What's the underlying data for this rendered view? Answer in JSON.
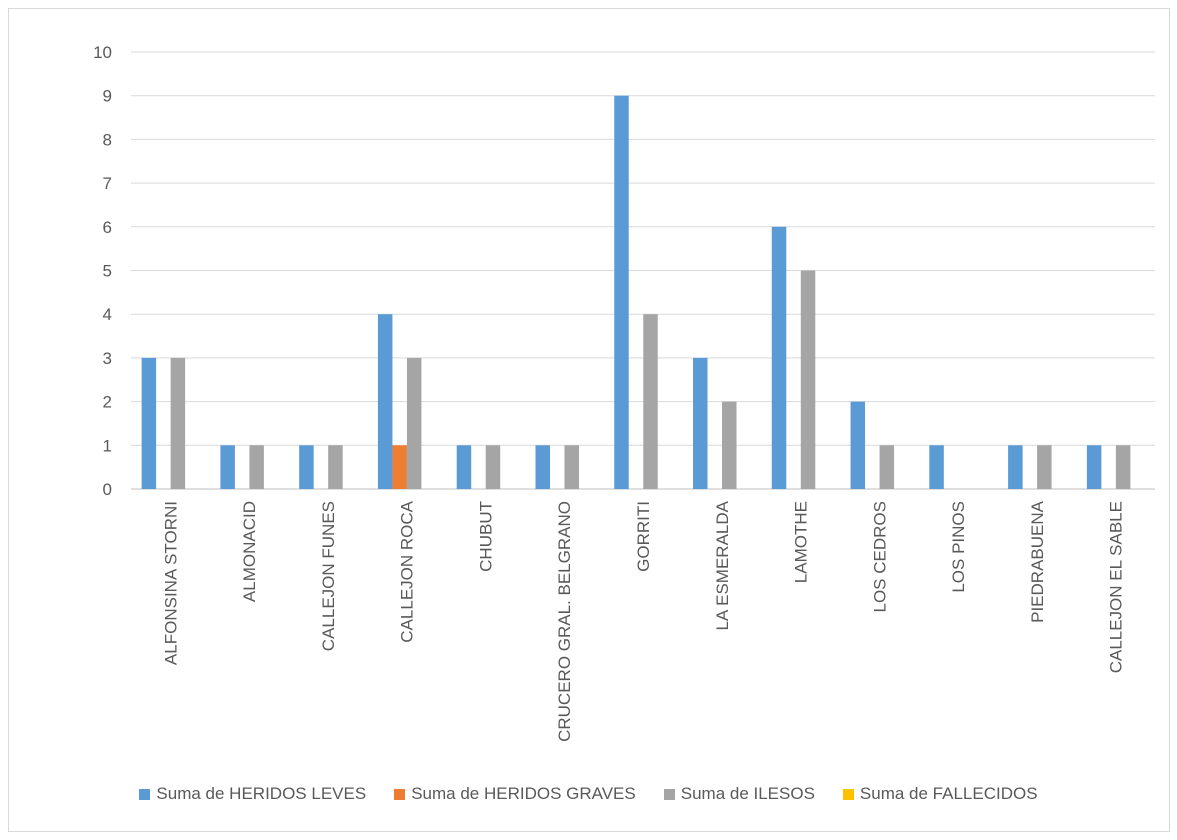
{
  "chart_data": {
    "type": "bar",
    "title": "",
    "xlabel": "",
    "ylabel": "",
    "ylim": [
      0,
      10
    ],
    "yticks": [
      0,
      1,
      2,
      3,
      4,
      5,
      6,
      7,
      8,
      9,
      10
    ],
    "grid": true,
    "legend_position": "bottom",
    "categories": [
      "ALFONSINA STORNI",
      "ALMONACID",
      "CALLEJON FUNES",
      "CALLEJON ROCA",
      "CHUBUT",
      "CRUCERO GRAL. BELGRANO",
      "GORRITI",
      "LA ESMERALDA",
      "LAMOTHE",
      "LOS CEDROS",
      "LOS PINOS",
      "PIEDRABUENA",
      "CALLEJON EL SABLE"
    ],
    "series": [
      {
        "name": "Suma de HERIDOS LEVES",
        "color": "#5b9bd5",
        "values": [
          3,
          1,
          1,
          4,
          1,
          1,
          9,
          3,
          6,
          2,
          1,
          1,
          1
        ]
      },
      {
        "name": "Suma de HERIDOS GRAVES",
        "color": "#ed7d31",
        "values": [
          0,
          0,
          0,
          1,
          0,
          0,
          0,
          0,
          0,
          0,
          0,
          0,
          0
        ]
      },
      {
        "name": "Suma de ILESOS",
        "color": "#a5a5a5",
        "values": [
          3,
          1,
          1,
          3,
          1,
          1,
          4,
          2,
          5,
          1,
          0,
          1,
          1
        ]
      },
      {
        "name": "Suma de FALLECIDOS",
        "color": "#ffc000",
        "values": [
          0,
          0,
          0,
          0,
          0,
          0,
          0,
          0,
          0,
          0,
          0,
          0,
          0
        ]
      }
    ]
  }
}
